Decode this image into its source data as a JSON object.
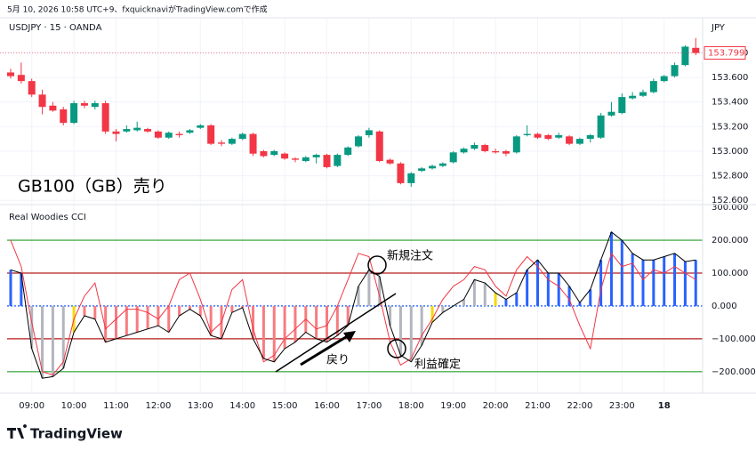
{
  "header": {
    "caption": "5月 10, 2026 10:58 UTC+9、fxquicknaviがTradingView.comで作成",
    "logo": "TradingView"
  },
  "chart_data": [
    {
      "type": "candlestick",
      "title": "USDJPY · 15 · OANDA",
      "currency_label": "JPY",
      "annotation": "GB100（GB）売り",
      "up_color": "#089981",
      "down_color": "#f23645",
      "grid": true,
      "categories": [
        null,
        null,
        "09:00",
        null,
        null,
        null,
        "10:00",
        null,
        null,
        null,
        "11:00",
        null,
        null,
        null,
        "12:00",
        null,
        null,
        null,
        "13:00",
        null,
        null,
        null,
        "14:00",
        null,
        null,
        null,
        "15:00",
        null,
        null,
        null,
        "16:00",
        null,
        null,
        null,
        "17:00",
        null,
        null,
        null,
        "18:00",
        null,
        null,
        null,
        "19:00",
        null,
        null,
        null,
        "20:00",
        null,
        null,
        null,
        "21:00",
        null,
        null,
        null,
        "22:00",
        null,
        null,
        null,
        "23:00",
        null,
        null,
        null,
        "18",
        null,
        null,
        null
      ],
      "open": [
        153.64,
        153.62,
        153.57,
        153.46,
        153.37,
        153.34,
        153.23,
        153.39,
        153.36,
        153.39,
        153.16,
        153.16,
        153.17,
        153.18,
        153.16,
        153.11,
        153.14,
        153.15,
        153.19,
        153.21,
        153.07,
        153.06,
        153.1,
        153.14,
        153.0,
        152.97,
        152.98,
        152.94,
        152.92,
        152.95,
        152.97,
        152.88,
        152.97,
        153.04,
        153.13,
        153.16,
        152.93,
        152.9,
        152.74,
        152.84,
        152.86,
        152.88,
        152.91,
        152.99,
        153.02,
        153.05,
        153.0,
        153.0,
        152.99,
        153.13,
        153.14,
        153.13,
        153.11,
        153.12,
        153.06,
        153.1,
        153.11,
        153.29,
        153.31,
        153.43,
        153.45,
        153.48,
        153.57,
        153.61,
        153.7,
        153.84
      ],
      "high": [
        153.67,
        153.72,
        153.59,
        153.5,
        153.4,
        153.36,
        153.41,
        153.41,
        153.41,
        153.41,
        153.18,
        153.21,
        153.24,
        153.19,
        153.17,
        153.16,
        153.16,
        153.18,
        153.22,
        153.22,
        153.09,
        153.11,
        153.15,
        153.15,
        153.01,
        153.01,
        152.99,
        152.95,
        152.96,
        152.98,
        152.98,
        152.98,
        153.04,
        153.13,
        153.19,
        153.17,
        152.94,
        152.91,
        152.83,
        152.87,
        152.89,
        152.91,
        153.0,
        153.03,
        153.07,
        153.06,
        153.02,
        153.01,
        153.13,
        153.21,
        153.15,
        153.14,
        153.15,
        153.13,
        153.11,
        153.14,
        153.31,
        153.4,
        153.47,
        153.48,
        153.5,
        153.59,
        153.62,
        153.72,
        153.86,
        153.92
      ],
      "low": [
        153.59,
        153.55,
        153.44,
        153.3,
        153.32,
        153.21,
        153.22,
        153.35,
        153.34,
        153.14,
        153.08,
        153.15,
        153.16,
        153.15,
        153.1,
        153.1,
        153.11,
        153.14,
        153.18,
        153.05,
        153.04,
        153.05,
        153.09,
        152.96,
        152.95,
        152.96,
        152.93,
        152.91,
        152.91,
        152.9,
        152.86,
        152.87,
        152.96,
        153.03,
        153.11,
        152.91,
        152.89,
        152.73,
        152.71,
        152.83,
        152.85,
        152.87,
        152.9,
        152.98,
        153.01,
        152.99,
        152.98,
        152.96,
        152.98,
        153.12,
        153.1,
        153.09,
        153.1,
        153.05,
        153.05,
        153.07,
        153.1,
        153.28,
        153.3,
        153.42,
        153.44,
        153.47,
        153.56,
        153.6,
        153.69,
        153.78
      ],
      "close": [
        153.61,
        153.57,
        153.46,
        153.36,
        153.33,
        153.23,
        153.39,
        153.37,
        153.39,
        153.16,
        153.14,
        153.18,
        153.19,
        153.16,
        153.11,
        153.15,
        153.13,
        153.17,
        153.21,
        153.06,
        153.06,
        153.1,
        153.14,
        152.98,
        152.96,
        153.0,
        152.94,
        152.93,
        152.95,
        152.97,
        152.87,
        152.97,
        153.03,
        153.12,
        153.17,
        152.92,
        152.9,
        152.74,
        152.82,
        152.86,
        152.88,
        152.9,
        152.99,
        153.02,
        153.05,
        153.0,
        152.99,
        152.98,
        153.12,
        153.14,
        153.11,
        153.1,
        153.13,
        153.06,
        153.1,
        153.13,
        153.29,
        153.32,
        153.44,
        153.45,
        153.48,
        153.57,
        153.61,
        153.7,
        153.85,
        153.799
      ],
      "last_price": 153.799,
      "ylim": [
        152.58,
        154.07
      ],
      "yticks": [
        {
          "value": 152.6,
          "label": "152.600"
        },
        {
          "value": 152.8,
          "label": "152.800"
        },
        {
          "value": 153.0,
          "label": "153.000"
        },
        {
          "value": 153.2,
          "label": "153.200"
        },
        {
          "value": 153.4,
          "label": "153.400"
        },
        {
          "value": 153.6,
          "label": "153.600"
        },
        {
          "value": 153.8,
          "label": "153.800"
        }
      ]
    },
    {
      "type": "bar",
      "title": "Real Woodies CCI",
      "annotations": [
        "新規注文",
        "戻り",
        "利益確定"
      ],
      "values": [
        110,
        100,
        -130,
        -220,
        -215,
        -190,
        -80,
        -30,
        -40,
        -110,
        -100,
        -90,
        -80,
        -70,
        -60,
        -80,
        -30,
        -10,
        -30,
        -90,
        -100,
        -20,
        -5,
        -100,
        -160,
        -170,
        -130,
        -110,
        -80,
        -100,
        -110,
        -90,
        -60,
        60,
        110,
        90,
        -60,
        -150,
        -170,
        -120,
        -50,
        -20,
        0,
        20,
        80,
        70,
        40,
        20,
        40,
        110,
        140,
        100,
        100,
        60,
        10,
        50,
        140,
        225,
        200,
        160,
        140,
        140,
        150,
        160,
        135,
        140
      ],
      "colors": [
        "#2962ff",
        "#2962ff",
        "#b2b5be",
        "#b2b5be",
        "#b2b5be",
        "#b2b5be",
        "#f5d90a",
        "#f77c80",
        "#f77c80",
        "#f77c80",
        "#f77c80",
        "#f77c80",
        "#f77c80",
        "#f77c80",
        "#f77c80",
        "#f77c80",
        "#f77c80",
        "#f77c80",
        "#f77c80",
        "#f77c80",
        "#f77c80",
        "#f77c80",
        "#f77c80",
        "#f77c80",
        "#f77c80",
        "#f77c80",
        "#f77c80",
        "#f77c80",
        "#f77c80",
        "#f77c80",
        "#f77c80",
        "#f77c80",
        "#f77c80",
        "#b2b5be",
        "#b2b5be",
        "#b2b5be",
        "#b2b5be",
        "#b2b5be",
        "#b2b5be",
        "#b2b5be",
        "#f5d90a",
        "#b2b5be",
        "#b2b5be",
        "#b2b5be",
        "#b2b5be",
        "#b2b5be",
        "#f5d90a",
        "#2962ff",
        "#2962ff",
        "#2962ff",
        "#2962ff",
        "#2962ff",
        "#2962ff",
        "#2962ff",
        "#2962ff",
        "#2962ff",
        "#2962ff",
        "#2962ff",
        "#2962ff",
        "#2962ff",
        "#2962ff",
        "#2962ff",
        "#2962ff",
        "#2962ff",
        "#2962ff",
        "#2962ff"
      ],
      "line_color": "#000000",
      "turbo": {
        "color": "#f23645",
        "values": [
          200,
          120,
          -50,
          -200,
          -210,
          -170,
          -40,
          30,
          70,
          -70,
          -40,
          -10,
          -10,
          -20,
          -40,
          0,
          80,
          100,
          20,
          -80,
          -50,
          50,
          80,
          -70,
          -170,
          -150,
          -100,
          -70,
          -40,
          -70,
          -60,
          0,
          80,
          160,
          150,
          30,
          -110,
          -180,
          -160,
          -90,
          -40,
          20,
          60,
          80,
          120,
          110,
          60,
          30,
          110,
          150,
          120,
          80,
          60,
          20,
          -60,
          -130,
          50,
          160,
          120,
          130,
          80,
          110,
          100,
          120,
          100,
          80
        ]
      },
      "levels": [
        {
          "value": 200,
          "color": "#4caf50"
        },
        {
          "value": 100,
          "color": "#b71c1c"
        },
        {
          "value": 0,
          "color": "#2962ff"
        },
        {
          "value": -100,
          "color": "#b71c1c"
        },
        {
          "value": -200,
          "color": "#4caf50"
        }
      ],
      "ylim": [
        -260,
        303
      ],
      "yticks": [
        {
          "value": -200,
          "label": "−200.000"
        },
        {
          "value": -100,
          "label": "−100.000"
        },
        {
          "value": 0,
          "label": "0.000"
        },
        {
          "value": 100,
          "label": "100.000"
        },
        {
          "value": 200,
          "label": "200.000"
        },
        {
          "value": 300,
          "label": "300.000"
        }
      ]
    }
  ]
}
